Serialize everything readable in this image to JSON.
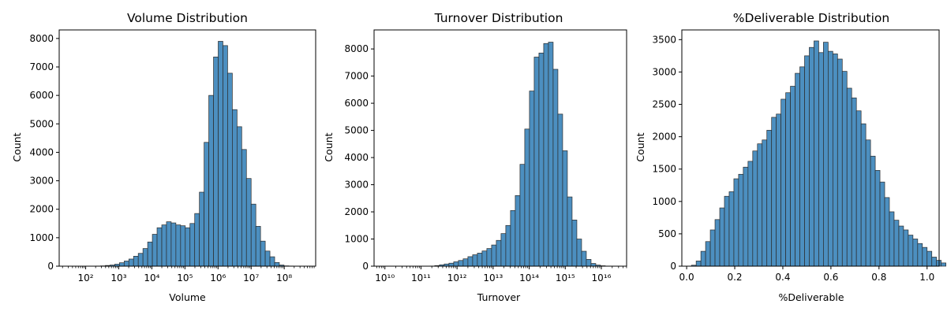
{
  "chart_data": [
    {
      "type": "bar",
      "title": "Volume Distribution",
      "xlabel": "Volume",
      "ylabel": "Count",
      "xscale": "log",
      "xlim_exp": [
        1.2,
        8.95
      ],
      "ylim": [
        0,
        8300
      ],
      "yticks": [
        0,
        1000,
        2000,
        3000,
        4000,
        5000,
        6000,
        7000,
        8000
      ],
      "xticks_exp": [
        2,
        3,
        4,
        5,
        6,
        7,
        8
      ],
      "bin_start_exp": 1.6,
      "bin_width_exp": 0.1421,
      "counts": [
        0,
        0,
        0,
        0,
        0,
        5,
        10,
        25,
        40,
        70,
        120,
        180,
        250,
        350,
        450,
        620,
        850,
        1120,
        1350,
        1450,
        1560,
        1520,
        1450,
        1420,
        1350,
        1500,
        1850,
        2600,
        4350,
        6000,
        7350,
        7900,
        7750,
        6780,
        5500,
        4900,
        4100,
        3080,
        2180,
        1400,
        880,
        530,
        330,
        130,
        40,
        10,
        5
      ]
    },
    {
      "type": "bar",
      "title": "Turnover Distribution",
      "xlabel": "Turnover",
      "ylabel": "Count",
      "xscale": "log",
      "xlim_exp": [
        9.7,
        16.7
      ],
      "ylim": [
        0,
        8700
      ],
      "yticks": [
        0,
        1000,
        2000,
        3000,
        4000,
        5000,
        6000,
        7000,
        8000
      ],
      "xticks_exp": [
        10,
        11,
        12,
        13,
        14,
        15,
        16
      ],
      "bin_start_exp": 10.2,
      "bin_width_exp": 0.1313,
      "counts": [
        0,
        0,
        0,
        0,
        0,
        0,
        0,
        0,
        5,
        20,
        50,
        80,
        110,
        160,
        210,
        270,
        350,
        420,
        480,
        560,
        650,
        780,
        950,
        1200,
        1500,
        2050,
        2600,
        3750,
        5050,
        6450,
        7700,
        7850,
        8200,
        8250,
        7250,
        5600,
        4250,
        2550,
        1700,
        1000,
        550,
        250,
        100,
        40,
        15,
        5,
        0,
        0,
        0
      ]
    },
    {
      "type": "bar",
      "title": "%Deliverable Distribution",
      "xlabel": "%Deliverable",
      "ylabel": "Count",
      "xscale": "linear",
      "xlim": [
        -0.02,
        1.05
      ],
      "ylim": [
        0,
        3650
      ],
      "yticks": [
        0,
        500,
        1000,
        1500,
        2000,
        2500,
        3000,
        3500
      ],
      "xticks": [
        0.0,
        0.2,
        0.4,
        0.6,
        0.8,
        1.0
      ],
      "bin_start": 0.02,
      "bin_width": 0.0196,
      "counts": [
        15,
        80,
        230,
        380,
        560,
        720,
        900,
        1080,
        1150,
        1350,
        1420,
        1530,
        1620,
        1780,
        1890,
        1950,
        2100,
        2300,
        2350,
        2580,
        2680,
        2780,
        2980,
        3080,
        3250,
        3380,
        3480,
        3300,
        3460,
        3320,
        3280,
        3200,
        3010,
        2750,
        2600,
        2400,
        2200,
        1950,
        1700,
        1480,
        1300,
        1060,
        840,
        710,
        620,
        560,
        480,
        420,
        350,
        290,
        230,
        140,
        90,
        50
      ]
    }
  ]
}
